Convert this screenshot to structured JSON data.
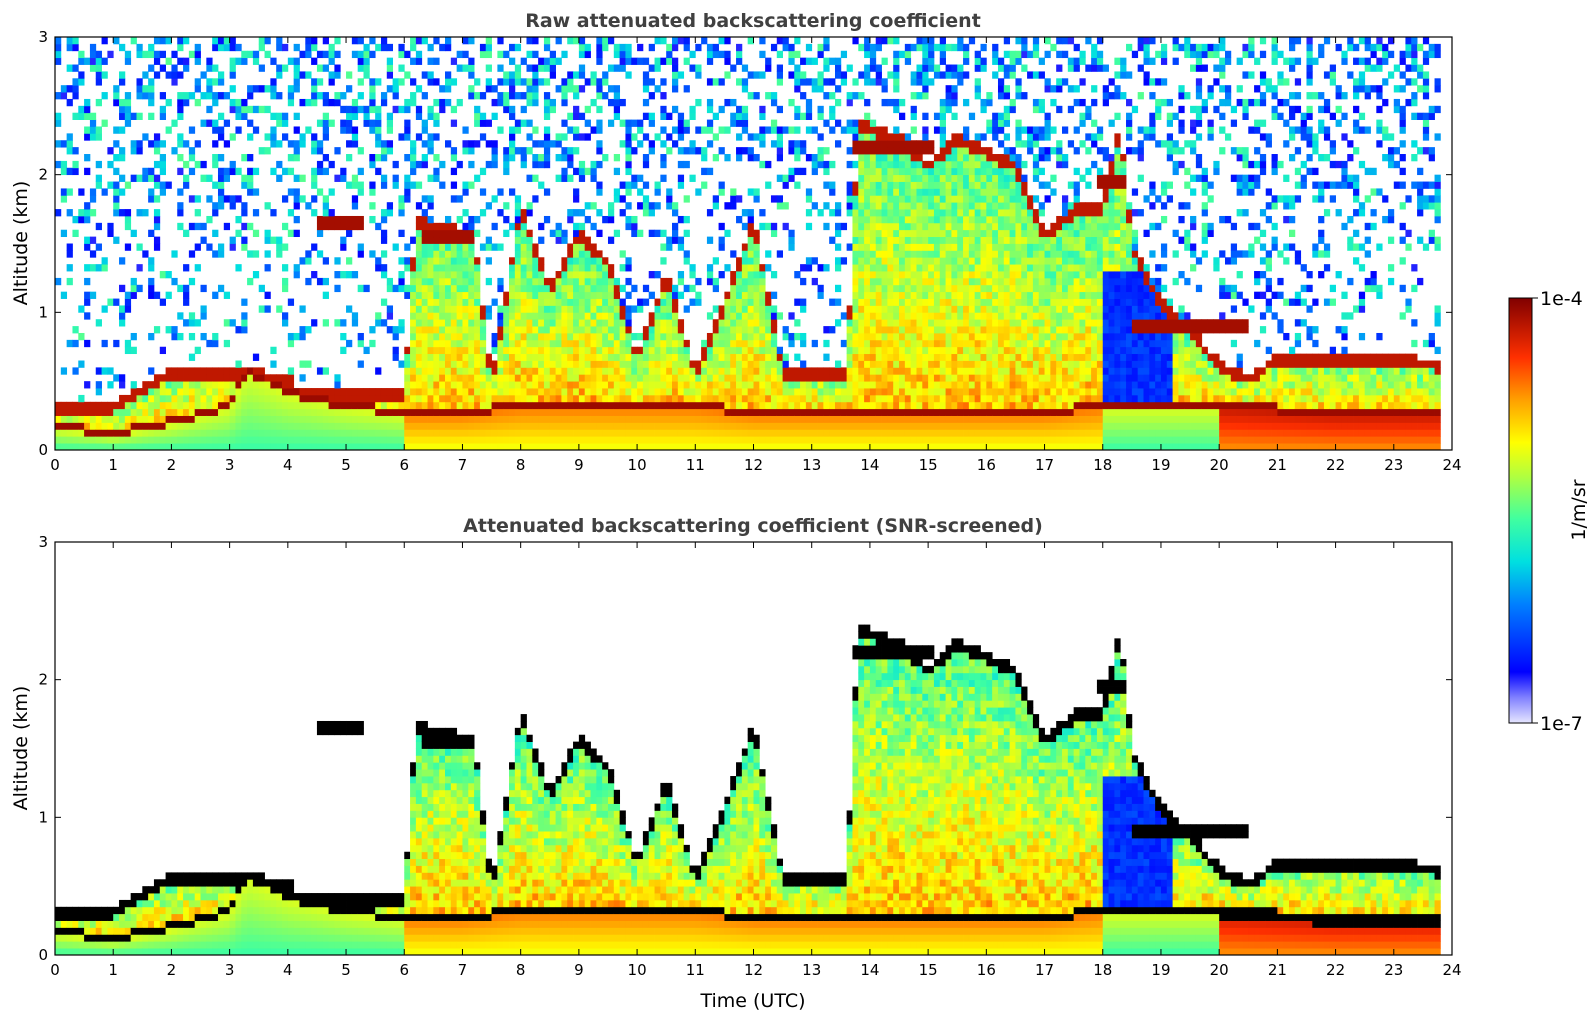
{
  "chart_data": [
    {
      "type": "heatmap",
      "title": "Raw attenuated backscattering coefficient",
      "xlabel": "",
      "ylabel": "Altitude (km)",
      "xlim": [
        0,
        24
      ],
      "ylim": [
        0,
        3
      ],
      "x_ticks": [
        "0",
        "1",
        "2",
        "3",
        "4",
        "5",
        "6",
        "7",
        "8",
        "9",
        "10",
        "11",
        "12",
        "13",
        "14",
        "15",
        "16",
        "17",
        "18",
        "19",
        "20",
        "21",
        "22",
        "23",
        "24"
      ],
      "y_ticks": [
        "0",
        "1",
        "2",
        "3"
      ],
      "features": {
        "boundary_layer_top_km": [
          [
            0,
            0.15
          ],
          [
            1,
            0.1
          ],
          [
            2,
            0.18
          ],
          [
            3,
            0.3
          ],
          [
            3.3,
            0.55
          ],
          [
            4,
            0.4
          ],
          [
            5,
            0.3
          ],
          [
            6,
            0.25
          ],
          [
            7,
            0.25
          ],
          [
            8,
            0.3
          ],
          [
            9,
            0.3
          ],
          [
            10,
            0.3
          ],
          [
            11,
            0.3
          ],
          [
            12,
            0.25
          ],
          [
            13,
            0.25
          ],
          [
            14,
            0.25
          ],
          [
            15,
            0.25
          ],
          [
            16,
            0.25
          ],
          [
            17,
            0.25
          ],
          [
            18,
            0.3
          ],
          [
            20,
            0.3
          ],
          [
            22,
            0.25
          ],
          [
            23.8,
            0.25
          ]
        ],
        "cloud_layers": [
          {
            "x_start": 4.5,
            "x_end": 5.3,
            "altitude_km": 1.65
          },
          {
            "x_start": 6.3,
            "x_end": 7.2,
            "altitude_km": 1.55
          },
          {
            "x_start": 13.7,
            "x_end": 15.1,
            "altitude_km": 2.2
          },
          {
            "x_start": 17.9,
            "x_end": 18.4,
            "altitude_km": 1.95
          },
          {
            "x_start": 18.5,
            "x_end": 20.5,
            "altitude_km": 0.9
          }
        ]
      },
      "colorbar": {
        "label": "1/m/sr",
        "min": "1e-7",
        "max": "1e-4",
        "scale": "log",
        "colormap": "jet"
      }
    },
    {
      "type": "heatmap",
      "title": "Attenuated backscattering coefficient (SNR-screened)",
      "xlabel": "Time (UTC)",
      "ylabel": "Altitude (km)",
      "xlim": [
        0,
        24
      ],
      "ylim": [
        0,
        3
      ],
      "x_ticks": [
        "0",
        "1",
        "2",
        "3",
        "4",
        "5",
        "6",
        "7",
        "8",
        "9",
        "10",
        "11",
        "12",
        "13",
        "14",
        "15",
        "16",
        "17",
        "18",
        "19",
        "20",
        "21",
        "22",
        "23",
        "24"
      ],
      "y_ticks": [
        "0",
        "1",
        "2",
        "3"
      ],
      "colorbar": {
        "label": "1/m/sr",
        "min": "1e-7",
        "max": "1e-4",
        "scale": "log",
        "colormap": "jet"
      }
    }
  ]
}
